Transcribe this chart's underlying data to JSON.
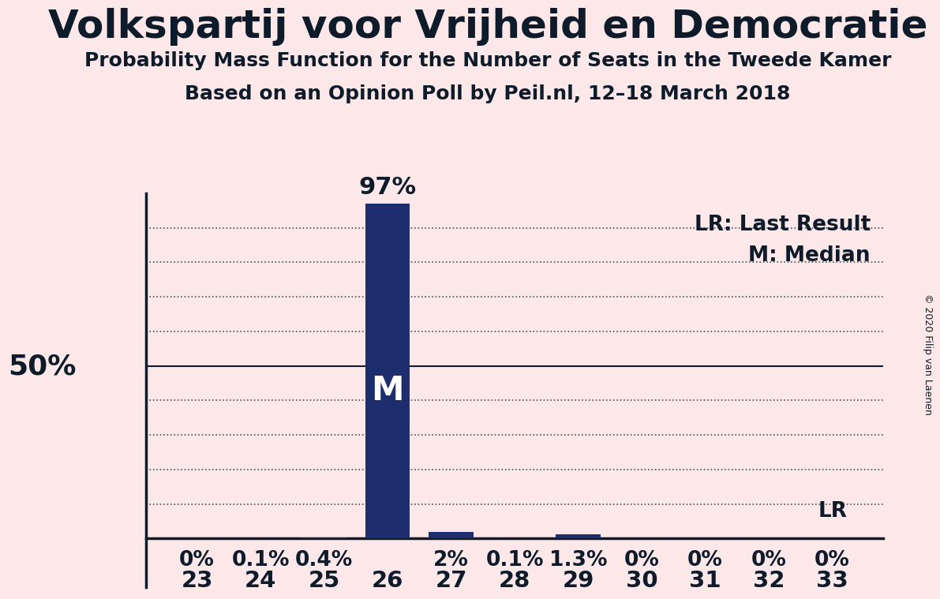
{
  "title": "Volkspartij voor Vrijheid en Democratie",
  "subtitle1": "Probability Mass Function for the Number of Seats in the Tweede Kamer",
  "subtitle2": "Based on an Opinion Poll by Peil.nl, 12–18 March 2018",
  "copyright": "© 2020 Filip van Laenen",
  "seats": [
    23,
    24,
    25,
    26,
    27,
    28,
    29,
    30,
    31,
    32,
    33
  ],
  "probabilities": [
    0.0,
    0.1,
    0.4,
    97.0,
    2.0,
    0.1,
    1.3,
    0.0,
    0.0,
    0.0,
    0.0
  ],
  "bar_labels": [
    "0%",
    "0.1%",
    "0.4%",
    "",
    "2%",
    "0.1%",
    "1.3%",
    "0%",
    "0%",
    "0%",
    "0%"
  ],
  "median_seat": 26,
  "last_result_seat": 33,
  "bar_color": "#1e2d6e",
  "background_color": "#fce8e8",
  "text_color": "#0d1b2a",
  "legend_lr": "LR: Last Result",
  "legend_m": "M: Median",
  "ylim_min": 0,
  "ylim_max": 100,
  "ylabel_50": "50%",
  "grid_lines": [
    10,
    20,
    30,
    40,
    50,
    60,
    70,
    80,
    90
  ],
  "solid_line": 50,
  "lr_label": "LR",
  "median_label": "M",
  "top_label_97": "97%"
}
